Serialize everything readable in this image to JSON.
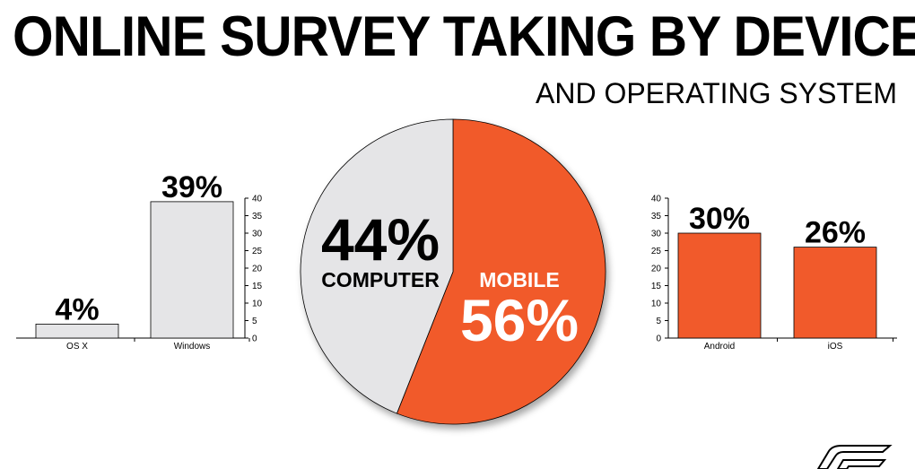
{
  "title": "ONLINE SURVEY TAKING BY DEVICE",
  "subtitle": "AND OPERATING SYSTEM",
  "colors": {
    "orange": "#f15a2b",
    "gray": "#e5e5e7",
    "ink": "#000000"
  },
  "chart_data": [
    {
      "type": "bar",
      "categories": [
        "OS X",
        "Windows"
      ],
      "values": [
        4,
        39
      ],
      "data_labels": [
        "4%",
        "39%"
      ],
      "ylim": [
        0,
        40
      ],
      "yticks": [
        "0",
        "5",
        "10",
        "15",
        "20",
        "25",
        "30",
        "35",
        "40"
      ],
      "axis_side": "right",
      "color": "#e5e5e7"
    },
    {
      "type": "pie",
      "slices": [
        {
          "label": "COMPUTER",
          "value": 44,
          "value_label": "44%",
          "color": "#e5e5e7"
        },
        {
          "label": "MOBILE",
          "value": 56,
          "value_label": "56%",
          "color": "#f15a2b"
        }
      ]
    },
    {
      "type": "bar",
      "categories": [
        "Android",
        "iOS"
      ],
      "values": [
        30,
        26
      ],
      "data_labels": [
        "30%",
        "26%"
      ],
      "ylim": [
        0,
        40
      ],
      "yticks": [
        "0",
        "5",
        "10",
        "15",
        "20",
        "25",
        "30",
        "35",
        "40"
      ],
      "axis_side": "left",
      "color": "#f15a2b"
    }
  ]
}
